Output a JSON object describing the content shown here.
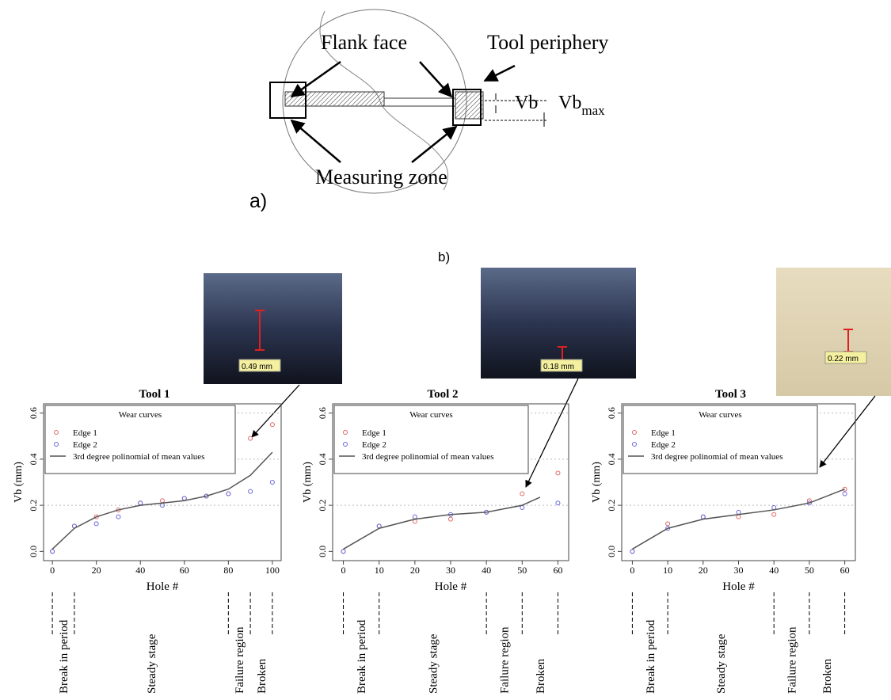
{
  "diagram": {
    "flank_face": "Flank face",
    "tool_periphery": "Tool periphery",
    "vb": "Vb",
    "vbmax": "Vb",
    "vbmax_sub": "max",
    "measuring_zone": "Measuring zone",
    "panel_label": "a)"
  },
  "panel_b_label": "b)",
  "chart_data": [
    {
      "type": "scatter",
      "title": "Tool 1",
      "xlabel": "Hole #",
      "ylabel": "Vb (mm)",
      "legend_title": "Wear curves",
      "image_label": "0.49 mm",
      "xlim": [
        -4,
        104
      ],
      "ylim": [
        -0.04,
        0.64
      ],
      "xticks": [
        0,
        20,
        40,
        60,
        80,
        100
      ],
      "yticks": [
        {
          "value": 0,
          "label": "0.0"
        },
        0.2,
        0.4,
        0.6
      ],
      "grid": true,
      "series": [
        {
          "name": "Edge 1",
          "color": "#e06666",
          "marker": "circle",
          "x": [
            0,
            10,
            20,
            30,
            40,
            50,
            60,
            70,
            80,
            90,
            100
          ],
          "values": [
            0,
            0.11,
            0.15,
            0.18,
            0.21,
            0.22,
            0.23,
            0.24,
            0.25,
            0.49,
            0.55
          ]
        },
        {
          "name": "Edge 2",
          "color": "#6666dd",
          "marker": "circle",
          "x": [
            0,
            10,
            20,
            30,
            40,
            50,
            60,
            70,
            80,
            90,
            100
          ],
          "values": [
            0,
            0.11,
            0.12,
            0.15,
            0.21,
            0.2,
            0.23,
            0.24,
            0.25,
            0.26,
            0.3
          ]
        },
        {
          "name": "3rd degree polinomial of mean values",
          "color": "#555555",
          "marker": "line",
          "x": [
            0,
            10,
            20,
            30,
            40,
            50,
            60,
            70,
            80,
            90,
            100
          ],
          "values": [
            0.01,
            0.1,
            0.15,
            0.18,
            0.2,
            0.21,
            0.22,
            0.24,
            0.27,
            0.33,
            0.43
          ]
        }
      ],
      "stages": [
        {
          "label": "Break in period",
          "from": 0,
          "to": 10
        },
        {
          "label": "Steady stage",
          "from": 10,
          "to": 80
        },
        {
          "label": "Failure region",
          "from": 80,
          "to": 90
        },
        {
          "label": "Broken",
          "from": 90,
          "to": 100
        }
      ]
    },
    {
      "type": "scatter",
      "title": "Tool 2",
      "xlabel": "Hole #",
      "ylabel": "Vb (mm)",
      "legend_title": "Wear curves",
      "image_label": "0.18 mm",
      "xlim": [
        -3,
        63
      ],
      "ylim": [
        -0.04,
        0.64
      ],
      "xticks": [
        0,
        10,
        20,
        30,
        40,
        50,
        60
      ],
      "yticks": [
        {
          "value": 0,
          "label": "0.0"
        },
        0.2,
        0.4,
        0.6
      ],
      "grid": true,
      "series": [
        {
          "name": "Edge 1",
          "color": "#e06666",
          "marker": "circle",
          "x": [
            0,
            10,
            20,
            30,
            40,
            50,
            60
          ],
          "values": [
            0,
            0.11,
            0.13,
            0.14,
            0.17,
            0.25,
            0.34
          ]
        },
        {
          "name": "Edge 2",
          "color": "#6666dd",
          "marker": "circle",
          "x": [
            0,
            10,
            20,
            30,
            40,
            50,
            60
          ],
          "values": [
            0,
            0.11,
            0.15,
            0.16,
            0.17,
            0.19,
            0.21
          ]
        },
        {
          "name": "3rd degree polinomial of mean values",
          "color": "#555555",
          "marker": "line",
          "x": [
            0,
            10,
            20,
            30,
            40,
            50,
            55
          ],
          "values": [
            0.01,
            0.1,
            0.14,
            0.16,
            0.17,
            0.2,
            0.235
          ]
        }
      ],
      "stages": [
        {
          "label": "Break in period",
          "from": 0,
          "to": 10
        },
        {
          "label": "Steady stage",
          "from": 10,
          "to": 40
        },
        {
          "label": "Failure region",
          "from": 40,
          "to": 50
        },
        {
          "label": "Broken",
          "from": 50,
          "to": 60
        }
      ]
    },
    {
      "type": "scatter",
      "title": "Tool 3",
      "xlabel": "Hole #",
      "ylabel": "Vb (mm)",
      "legend_title": "Wear curves",
      "image_label": "0.22 mm",
      "xlim": [
        -3,
        63
      ],
      "ylim": [
        -0.04,
        0.64
      ],
      "xticks": [
        0,
        10,
        20,
        30,
        40,
        50,
        60
      ],
      "yticks": [
        {
          "value": 0,
          "label": "0.0"
        },
        0.2,
        0.4,
        0.6
      ],
      "grid": true,
      "series": [
        {
          "name": "Edge 1",
          "color": "#e06666",
          "marker": "circle",
          "x": [
            0,
            10,
            20,
            30,
            40,
            50,
            60
          ],
          "values": [
            0,
            0.12,
            0.15,
            0.15,
            0.16,
            0.22,
            0.27
          ]
        },
        {
          "name": "Edge 2",
          "color": "#6666dd",
          "marker": "circle",
          "x": [
            0,
            10,
            20,
            30,
            40,
            50,
            60
          ],
          "values": [
            0,
            0.1,
            0.15,
            0.17,
            0.19,
            0.21,
            0.25
          ]
        },
        {
          "name": "3rd degree polinomial of mean values",
          "color": "#555555",
          "marker": "line",
          "x": [
            0,
            10,
            20,
            30,
            40,
            50,
            60
          ],
          "values": [
            0.01,
            0.1,
            0.14,
            0.16,
            0.18,
            0.21,
            0.27
          ]
        }
      ],
      "stages": [
        {
          "label": "Break in period",
          "from": 0,
          "to": 10
        },
        {
          "label": "Steady stage",
          "from": 10,
          "to": 40
        },
        {
          "label": "Failure region",
          "from": 40,
          "to": 50
        },
        {
          "label": "Broken",
          "from": 50,
          "to": 60
        }
      ]
    }
  ]
}
